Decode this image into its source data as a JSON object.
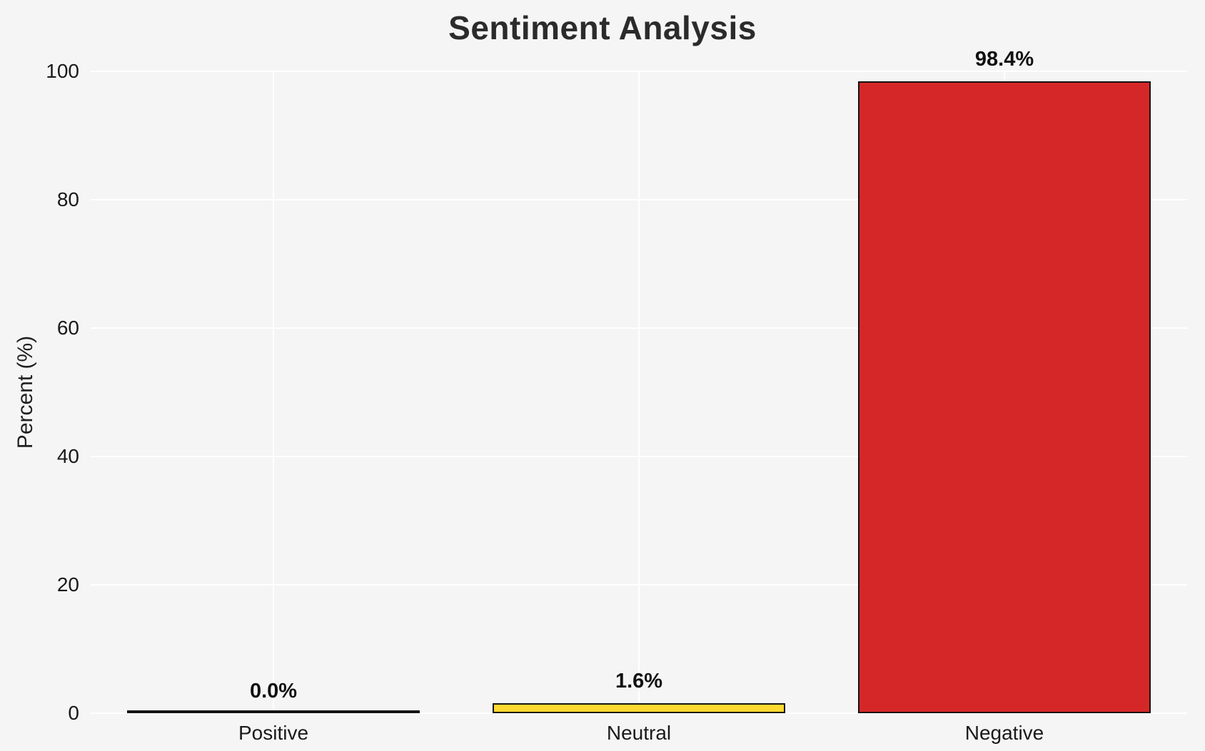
{
  "figure": {
    "title": "Sentiment Analysis",
    "ylabel": "Percent (%)"
  },
  "chart_data": {
    "type": "bar",
    "title": "Sentiment Analysis",
    "xlabel": "",
    "ylabel": "Percent (%)",
    "categories": [
      "Positive",
      "Neutral",
      "Negative"
    ],
    "values": [
      0.0,
      1.6,
      98.4
    ],
    "value_labels": [
      "0.0%",
      "1.6%",
      "98.4%"
    ],
    "bar_colors": [
      "#bdbdbd",
      "#ffd92f",
      "#d62728"
    ],
    "bar_edge_color": "#141414",
    "bar_width_fraction": 0.8,
    "ylim": [
      0,
      100
    ],
    "yticks": [
      0,
      20,
      40,
      60,
      80,
      100
    ],
    "grid": true,
    "gridline_color": "#ffffff",
    "background_color": "#f5f5f6",
    "legend": "none"
  }
}
